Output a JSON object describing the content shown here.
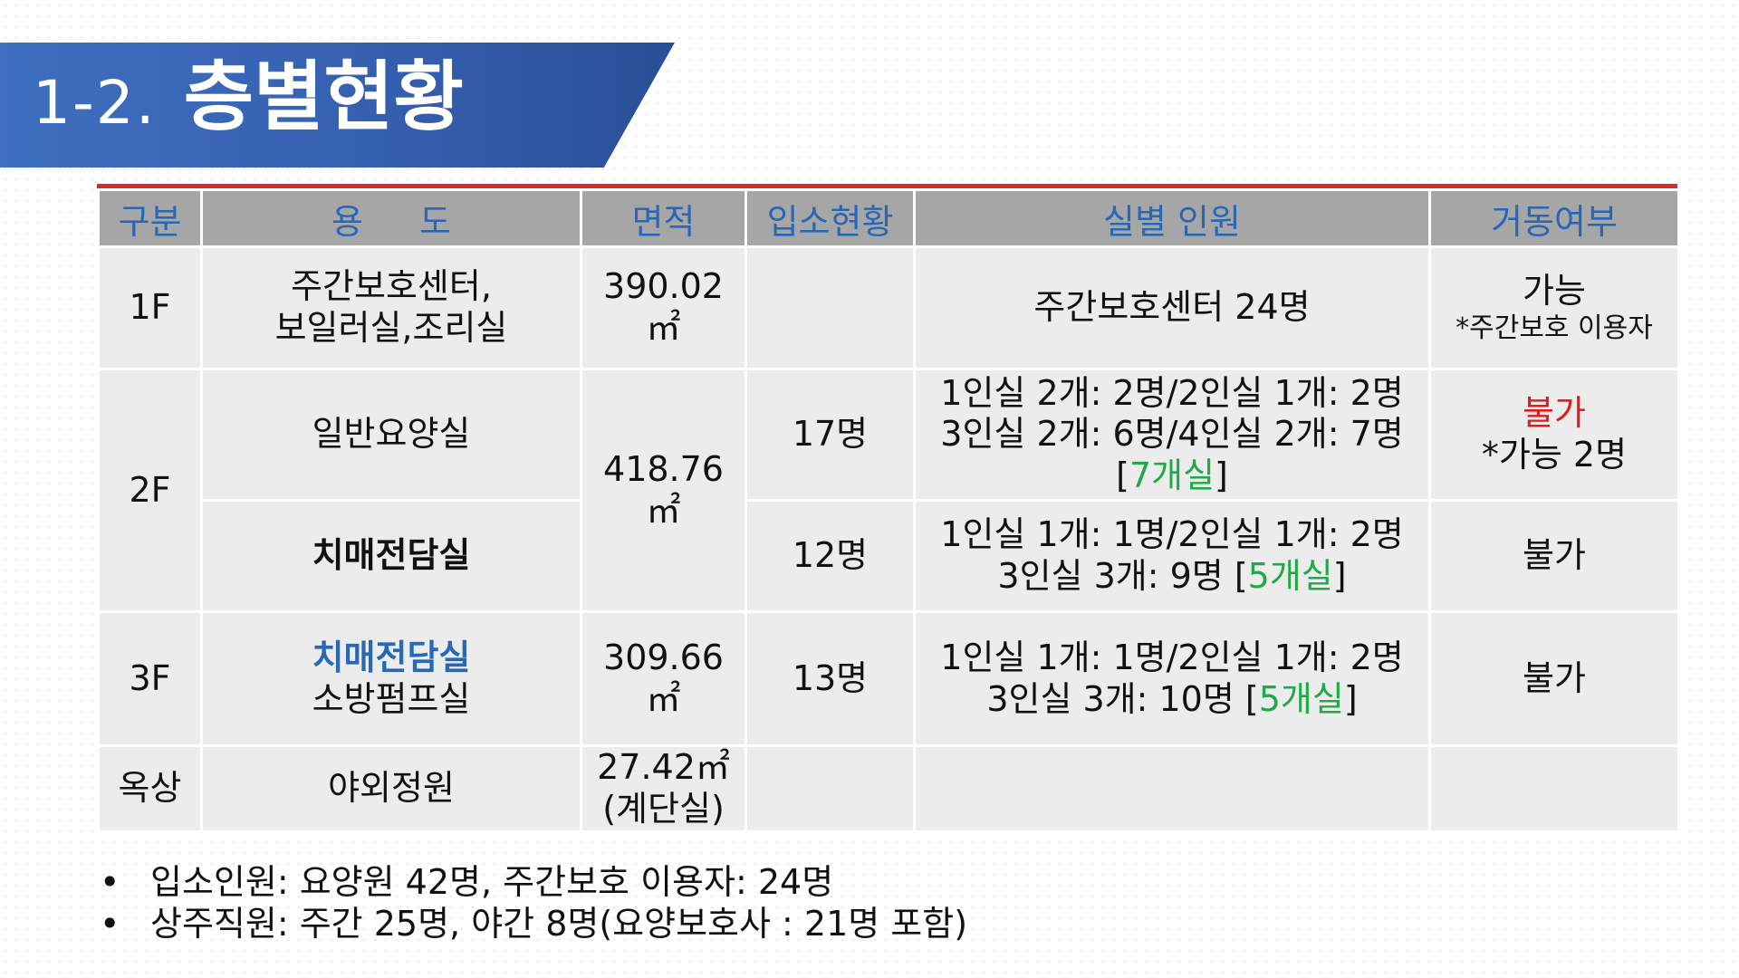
{
  "title": {
    "number": "1-2.",
    "text": "층별현황"
  },
  "table": {
    "headers": [
      "구분",
      "용 도",
      "면적",
      "입소현황",
      "실별 인원",
      "거동여부"
    ],
    "rows": {
      "f1": {
        "floor": "1F",
        "use": [
          "주간보호센터,",
          "보일러실,조리실"
        ],
        "area": "390.02㎡",
        "residents": "",
        "rooms": "주간보호센터 24명",
        "mobility": "가능",
        "mobility_note": "*주간보호 이용자"
      },
      "f2": {
        "floor": "2F",
        "area": "418.76㎡",
        "a": {
          "use": "일반요양실",
          "residents": "17명",
          "rooms": [
            "1인실 2개: 2명/2인실 1개: 2명",
            "3인실 2개: 6명/4인실 2개: 7명"
          ],
          "room_bracket_open": "[",
          "room_count": "7개실",
          "room_bracket_close": "]",
          "mobility": "불가",
          "mobility_note": "*가능 2명"
        },
        "b": {
          "use": "치매전담실",
          "residents": "12명",
          "rooms_line1": "1인실 1개: 1명/2인실 1개: 2명",
          "rooms_line2": "3인실 3개: 9명 [",
          "room_count": "5개실",
          "room_bracket_close": "]",
          "mobility": "불가"
        }
      },
      "f3": {
        "floor": "3F",
        "use_highlight": "치매전담실",
        "use": "소방펌프실",
        "area": "309.66㎡",
        "residents": "13명",
        "rooms_line1": "1인실 1개: 1명/2인실 1개: 2명",
        "rooms_line2": "3인실 3개: 10명 [",
        "room_count": "5개실",
        "room_bracket_close": "]",
        "mobility": "불가"
      },
      "roof": {
        "floor": "옥상",
        "use": "야외정원",
        "area": "27.42㎡",
        "area_note": "(계단실)",
        "residents": "",
        "rooms": "",
        "mobility": ""
      }
    }
  },
  "notes": [
    "입소인원: 요양원 42명, 주간보호 이용자: 24명",
    "상주직원: 주간 25명, 야간 8명(요양보호사 : 21명 포함)"
  ],
  "colors": {
    "accent": "#3560b0",
    "header_text": "#2767b8",
    "warning": "#e01b1b",
    "room_count": "#1eaa46"
  }
}
